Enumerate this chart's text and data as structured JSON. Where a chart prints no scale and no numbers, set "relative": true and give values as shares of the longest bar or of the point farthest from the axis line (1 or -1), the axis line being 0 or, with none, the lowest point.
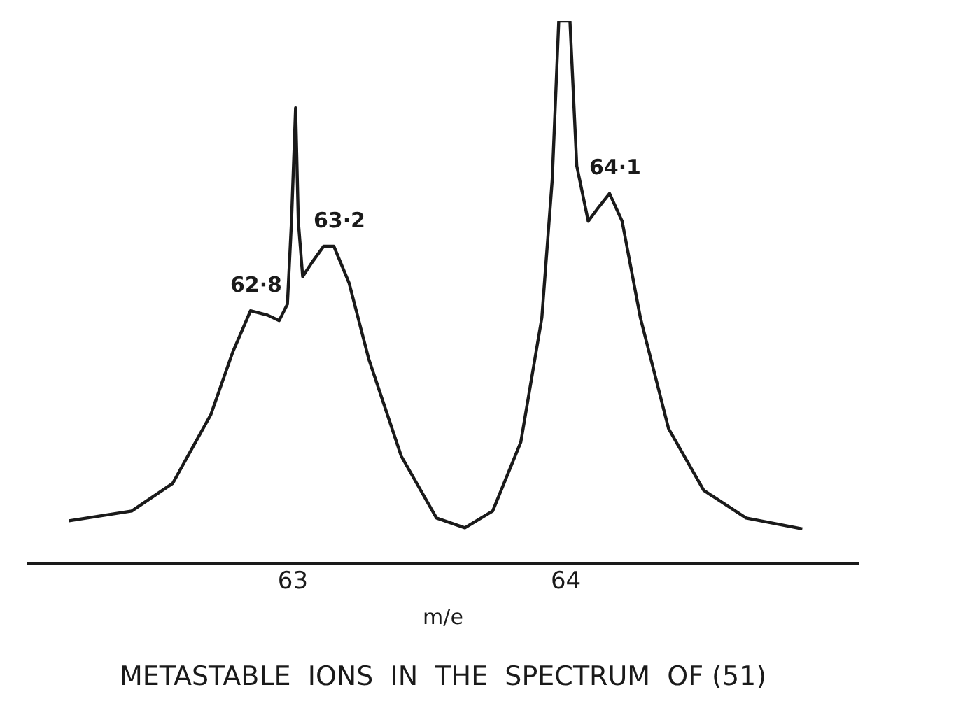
{
  "chart_data": {
    "type": "line",
    "title": "METASTABLE  IONS  IN  THE  SPECTRUM  OF (51)",
    "xlabel": "m/e",
    "relative": true,
    "xlim": [
      62.03,
      65.07
    ],
    "xticks": [
      63,
      64
    ],
    "grid": false,
    "legend": false,
    "marker": "none",
    "line_style": "solid",
    "series": [
      {
        "color": "#1a1a1a",
        "x": [
          62.18,
          62.41,
          62.56,
          62.7,
          62.78,
          62.845,
          62.907,
          62.95,
          62.98,
          62.995,
          63.01,
          63.02,
          63.036,
          63.07,
          63.113,
          63.15,
          63.206,
          63.278,
          63.397,
          63.526,
          63.63,
          63.732,
          63.835,
          63.912,
          63.95,
          63.974,
          64.015,
          64.04,
          64.082,
          64.119,
          64.16,
          64.206,
          64.273,
          64.376,
          64.505,
          64.66,
          64.866
        ],
        "values": [
          0.079,
          0.097,
          0.148,
          0.275,
          0.39,
          0.466,
          0.458,
          0.448,
          0.478,
          0.631,
          0.84,
          0.631,
          0.529,
          0.555,
          0.585,
          0.585,
          0.517,
          0.377,
          0.198,
          0.084,
          0.066,
          0.097,
          0.224,
          0.453,
          0.707,
          1.0,
          1.0,
          0.733,
          0.631,
          0.656,
          0.682,
          0.631,
          0.453,
          0.249,
          0.135,
          0.084,
          0.064
        ]
      }
    ],
    "annotations": [
      {
        "text": "62·8",
        "x": 62.845,
        "y": 0.466
      },
      {
        "text": "63·2",
        "x": 63.15,
        "y": 0.585
      },
      {
        "text": "64·1",
        "x": 64.16,
        "y": 0.682
      }
    ]
  }
}
